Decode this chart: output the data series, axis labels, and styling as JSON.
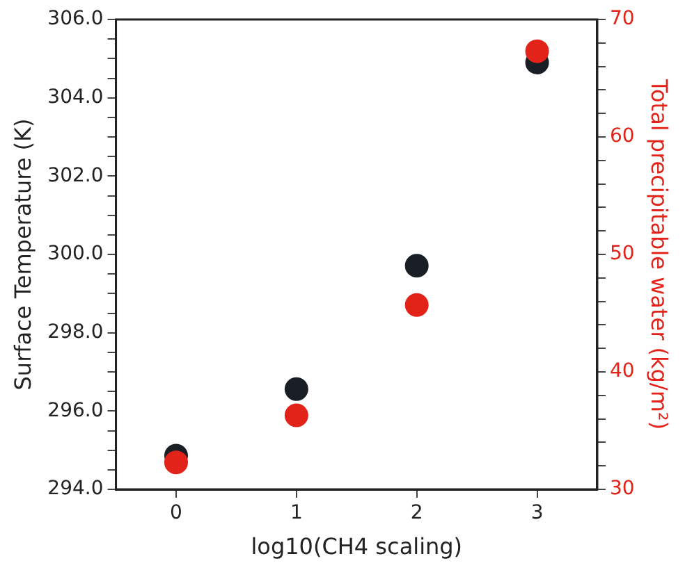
{
  "chart_data": {
    "type": "scatter",
    "xlabel": "log10(CH4 scaling)",
    "ylabel": "Surface Temperature (K)",
    "y2label": "Total precipitable water (kg/m²)",
    "marker": "circle",
    "grid": false,
    "legend": false,
    "x": [
      0,
      1,
      2,
      3
    ],
    "xlim": [
      -0.5,
      3.5
    ],
    "xticks": [
      0,
      1,
      2,
      3
    ],
    "ylim": [
      294,
      306
    ],
    "yticks": [
      {
        "value": 294,
        "label": "294.0"
      },
      {
        "value": 294.5,
        "label": null
      },
      {
        "value": 295,
        "label": null
      },
      {
        "value": 295.5,
        "label": null
      },
      {
        "value": 296,
        "label": "296.0"
      },
      {
        "value": 296.5,
        "label": null
      },
      {
        "value": 297,
        "label": null
      },
      {
        "value": 297.5,
        "label": null
      },
      {
        "value": 298,
        "label": "298.0"
      },
      {
        "value": 298.5,
        "label": null
      },
      {
        "value": 299,
        "label": null
      },
      {
        "value": 299.5,
        "label": null
      },
      {
        "value": 300,
        "label": "300.0"
      },
      {
        "value": 300.5,
        "label": null
      },
      {
        "value": 301,
        "label": null
      },
      {
        "value": 301.5,
        "label": null
      },
      {
        "value": 302,
        "label": "302.0"
      },
      {
        "value": 302.5,
        "label": null
      },
      {
        "value": 303,
        "label": null
      },
      {
        "value": 303.5,
        "label": null
      },
      {
        "value": 304,
        "label": "304.0"
      },
      {
        "value": 304.5,
        "label": null
      },
      {
        "value": 305,
        "label": null
      },
      {
        "value": 305.5,
        "label": null
      },
      {
        "value": 306,
        "label": "306.0"
      }
    ],
    "y2lim": [
      30,
      70
    ],
    "y2ticks": [
      30,
      {
        "value": 32,
        "label": null
      },
      {
        "value": 34,
        "label": null
      },
      {
        "value": 36,
        "label": null
      },
      {
        "value": 38,
        "label": null
      },
      40,
      {
        "value": 42,
        "label": null
      },
      {
        "value": 44,
        "label": null
      },
      {
        "value": 46,
        "label": null
      },
      {
        "value": 48,
        "label": null
      },
      50,
      {
        "value": 52,
        "label": null
      },
      {
        "value": 54,
        "label": null
      },
      {
        "value": 56,
        "label": null
      },
      {
        "value": 58,
        "label": null
      },
      60,
      {
        "value": 62,
        "label": null
      },
      {
        "value": 64,
        "label": null
      },
      {
        "value": 66,
        "label": null
      },
      {
        "value": 68,
        "label": null
      },
      70
    ],
    "series": [
      {
        "color": "#1a1f26",
        "values": [
          294.86,
          296.56,
          299.71,
          304.9
        ]
      },
      {
        "color": "#e2231a",
        "axis": "y2",
        "values": [
          32.3,
          36.3,
          45.7,
          67.3
        ]
      }
    ]
  }
}
